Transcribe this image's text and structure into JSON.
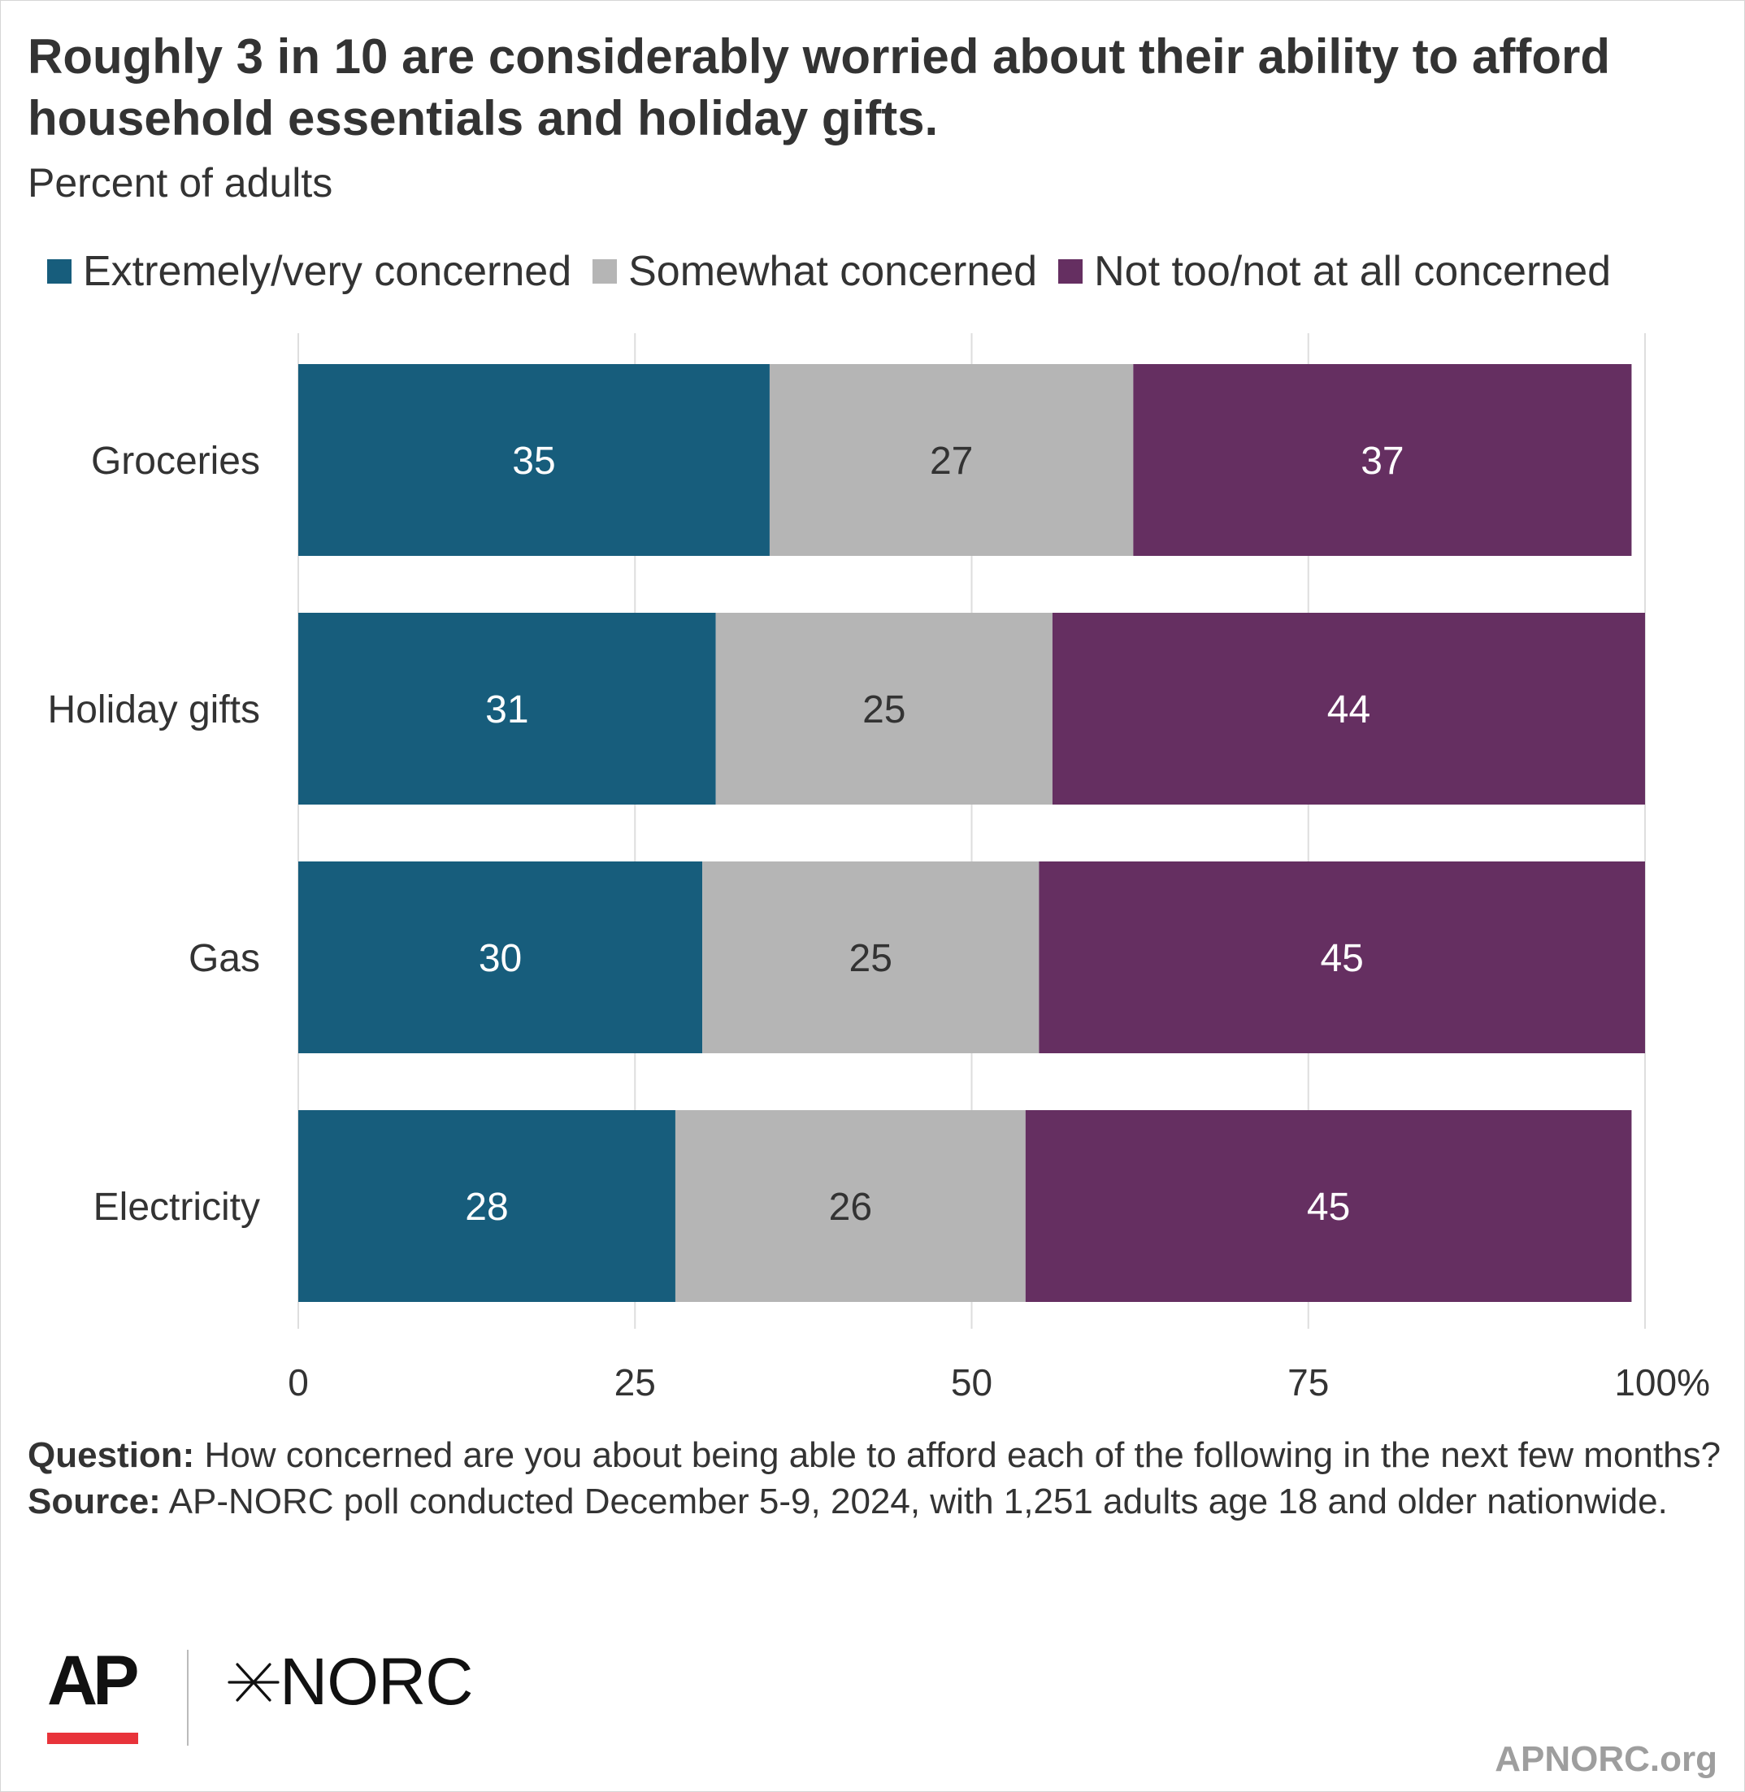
{
  "title": "Roughly 3 in 10 are considerably worried about their ability to afford household essentials and holiday gifts.",
  "subtitle": "Percent of adults",
  "legend": [
    {
      "label": "Extremely/very concerned",
      "color": "#175d7c"
    },
    {
      "label": "Somewhat concerned",
      "color": "#b5b5b5"
    },
    {
      "label": "Not too/not at all concerned",
      "color": "#652f61"
    }
  ],
  "chart_data": {
    "type": "bar",
    "orientation": "horizontal",
    "stacked": true,
    "categories": [
      "Groceries",
      "Holiday gifts",
      "Gas",
      "Electricity"
    ],
    "series": [
      {
        "name": "Extremely/very concerned",
        "values": [
          35,
          31,
          30,
          28
        ],
        "color": "#175d7c",
        "label_color": "#ffffff"
      },
      {
        "name": "Somewhat concerned",
        "values": [
          27,
          25,
          25,
          26
        ],
        "color": "#b5b5b5",
        "label_color": "#333333"
      },
      {
        "name": "Not too/not at all concerned",
        "values": [
          37,
          44,
          45,
          45
        ],
        "color": "#652f61",
        "label_color": "#ffffff"
      }
    ],
    "xlim": [
      0,
      100
    ],
    "x_ticks": [
      0,
      25,
      50,
      75,
      100
    ],
    "x_tick_labels": [
      "0",
      "25",
      "50",
      "75",
      "100%"
    ],
    "grid": true,
    "legend_position": "top"
  },
  "notes": {
    "question_label": "Question:",
    "question_text": " How concerned are you about being able to afford each of the following in the next few months?",
    "source_label": "Source:",
    "source_text": " AP-NORC poll conducted December 5-9, 2024, with 1,251 adults age 18 and older nationwide."
  },
  "logos": {
    "ap": "AP",
    "norc": "NORC",
    "ap_bar_color": "#e8333a"
  },
  "site": "APNORC.org"
}
